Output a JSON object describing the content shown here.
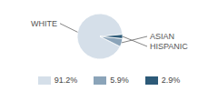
{
  "chart_data": {
    "type": "pie",
    "categories": [
      "WHITE",
      "ASIAN",
      "HISPANIC"
    ],
    "values": [
      91.2,
      5.9,
      2.9
    ],
    "value_labels": [
      "91.2%",
      "5.9%",
      "2.9%"
    ],
    "colors": [
      "#d5dfe9",
      "#8ba4b9",
      "#2d5a78"
    ],
    "legend": "bottom"
  }
}
